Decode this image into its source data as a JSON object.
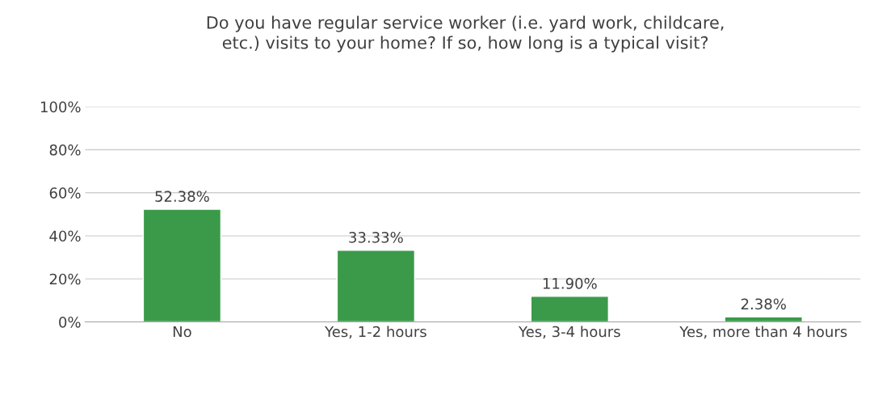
{
  "chart_data": {
    "type": "bar",
    "title": "Do you have regular service worker (i.e. yard work, childcare,\netc.) visits to your home? If so, how long is a typical visit?",
    "categories": [
      "No",
      "Yes, 1-2 hours",
      "Yes, 3-4 hours",
      "Yes, more than 4 hours"
    ],
    "values": [
      52.38,
      33.33,
      11.9,
      2.38
    ],
    "value_labels": [
      "52.38%",
      "33.33%",
      "11.90%",
      "2.38%"
    ],
    "color": "#3a9a4a",
    "ylim": [
      0,
      100
    ],
    "yticks": [
      {
        "value": 0,
        "label": "0%"
      },
      {
        "value": 20,
        "label": "20%"
      },
      {
        "value": 40,
        "label": "40%"
      },
      {
        "value": 60,
        "label": "60%"
      },
      {
        "value": 80,
        "label": "80%"
      },
      {
        "value": 100,
        "label": "100%"
      }
    ],
    "grid": "y"
  }
}
